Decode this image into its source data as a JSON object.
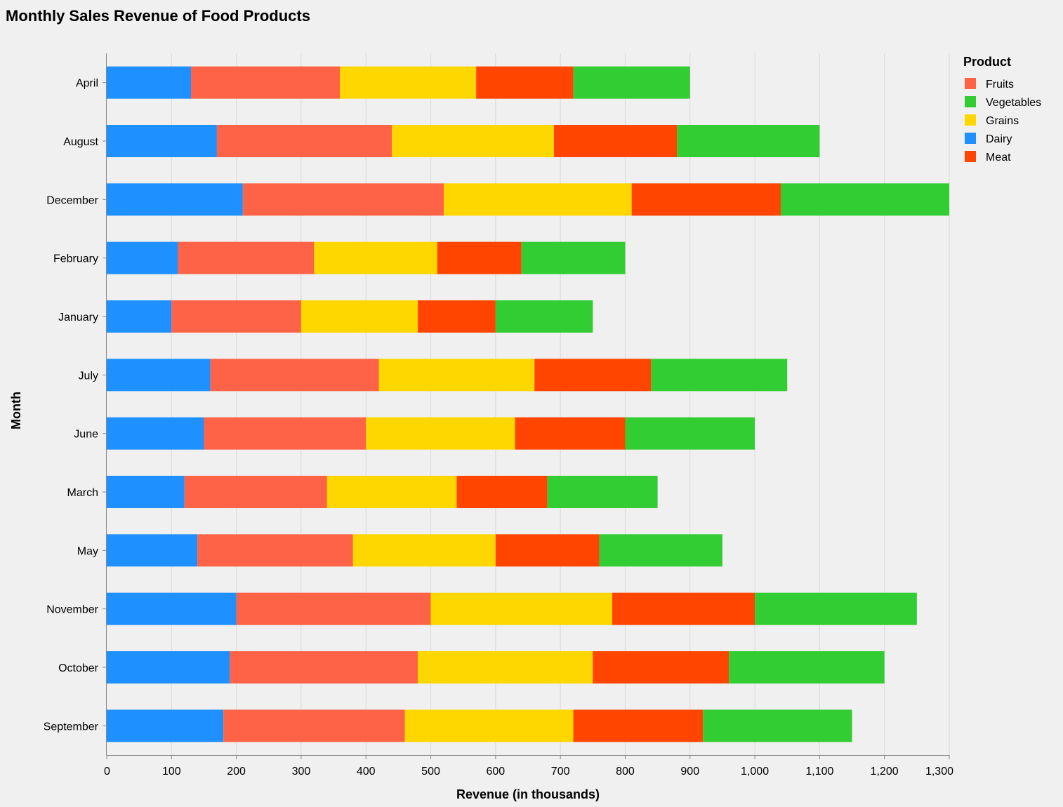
{
  "chart_data": {
    "type": "bar",
    "orientation": "horizontal",
    "stacked": true,
    "title": "Monthly Sales Revenue of Food Products",
    "xlabel": "Revenue (in thousands)",
    "ylabel": "Month",
    "xlim": [
      0,
      1300
    ],
    "xticks": [
      0,
      100,
      200,
      300,
      400,
      500,
      600,
      700,
      800,
      900,
      1000,
      1100,
      1200,
      1300
    ],
    "xtick_labels": [
      "0",
      "100",
      "200",
      "300",
      "400",
      "500",
      "600",
      "700",
      "800",
      "900",
      "1,000",
      "1,100",
      "1,200",
      "1,300"
    ],
    "grid": true,
    "legend_title": "Product",
    "legend_placement": "top-right",
    "legend_order": [
      "Fruits",
      "Vegetables",
      "Grains",
      "Dairy",
      "Meat"
    ],
    "categories": [
      "April",
      "August",
      "December",
      "February",
      "January",
      "July",
      "June",
      "March",
      "May",
      "November",
      "October",
      "September"
    ],
    "stack_order": [
      "Dairy",
      "Fruits",
      "Grains",
      "Meat",
      "Vegetables"
    ],
    "series": [
      {
        "name": "Fruits",
        "color": "#ff6347",
        "values": [
          230,
          270,
          310,
          210,
          200,
          260,
          250,
          220,
          240,
          300,
          290,
          280
        ]
      },
      {
        "name": "Vegetables",
        "color": "#32cd32",
        "values": [
          180,
          220,
          260,
          160,
          150,
          210,
          200,
          170,
          190,
          250,
          240,
          230
        ]
      },
      {
        "name": "Grains",
        "color": "#ffd700",
        "values": [
          210,
          250,
          290,
          190,
          180,
          240,
          230,
          200,
          220,
          280,
          270,
          260
        ]
      },
      {
        "name": "Dairy",
        "color": "#1e90ff",
        "values": [
          130,
          170,
          210,
          110,
          100,
          160,
          150,
          120,
          140,
          200,
          190,
          180
        ]
      },
      {
        "name": "Meat",
        "color": "#ff4500",
        "values": [
          150,
          190,
          230,
          130,
          120,
          180,
          170,
          140,
          160,
          220,
          210,
          200
        ]
      }
    ]
  }
}
